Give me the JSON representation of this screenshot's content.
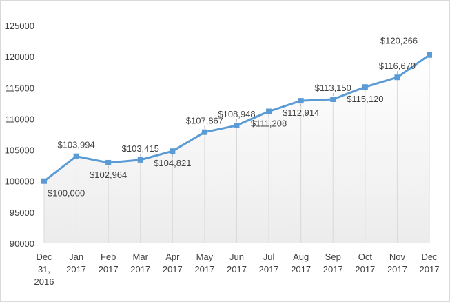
{
  "chart_data": {
    "type": "line",
    "title": "",
    "xlabel": "",
    "ylabel": "",
    "ylim": [
      90000,
      125000
    ],
    "yticks": [
      90000,
      95000,
      100000,
      105000,
      110000,
      115000,
      120000,
      125000
    ],
    "ytick_labels": [
      "90000",
      "95000",
      "100000",
      "105000",
      "110000",
      "115000",
      "120000",
      "125000"
    ],
    "grid": "vertical dropped lines at each point",
    "categories": [
      [
        "Dec",
        "31,",
        "2016"
      ],
      [
        "Jan",
        "2017"
      ],
      [
        "Feb",
        "2017"
      ],
      [
        "Mar",
        "2017"
      ],
      [
        "Apr",
        "2017"
      ],
      [
        "May",
        "2017"
      ],
      [
        "Jun",
        "2017"
      ],
      [
        "Jul",
        "2017"
      ],
      [
        "Aug",
        "2017"
      ],
      [
        "Sep",
        "2017"
      ],
      [
        "Oct",
        "2017"
      ],
      [
        "Nov",
        "2017"
      ],
      [
        "Dec",
        "2017"
      ]
    ],
    "series": [
      {
        "values": [
          100000,
          103994,
          102964,
          103415,
          104821,
          107867,
          108948,
          111208,
          112914,
          113150,
          115120,
          116670,
          120266
        ],
        "labels": [
          "$100,000",
          "$103,994",
          "$102,964",
          "$103,415",
          "$104,821",
          "$107,867",
          "$108,948",
          "$111,208",
          "$112,914",
          "$113,150",
          "$115,120",
          "$116,670",
          "$120,266"
        ],
        "label_positions": [
          "below",
          "above",
          "below",
          "above",
          "below",
          "above",
          "above",
          "below",
          "below",
          "above",
          "below",
          "above",
          "above"
        ]
      }
    ],
    "colors": {
      "line": "#5b9bd5",
      "marker": "#5b9bd5",
      "plot_fill_top": "#ffffff",
      "plot_fill_bottom": "#ececec",
      "drop_line": "#d9d9d9",
      "text": "#404040",
      "leader": "#a6a6a6"
    }
  }
}
